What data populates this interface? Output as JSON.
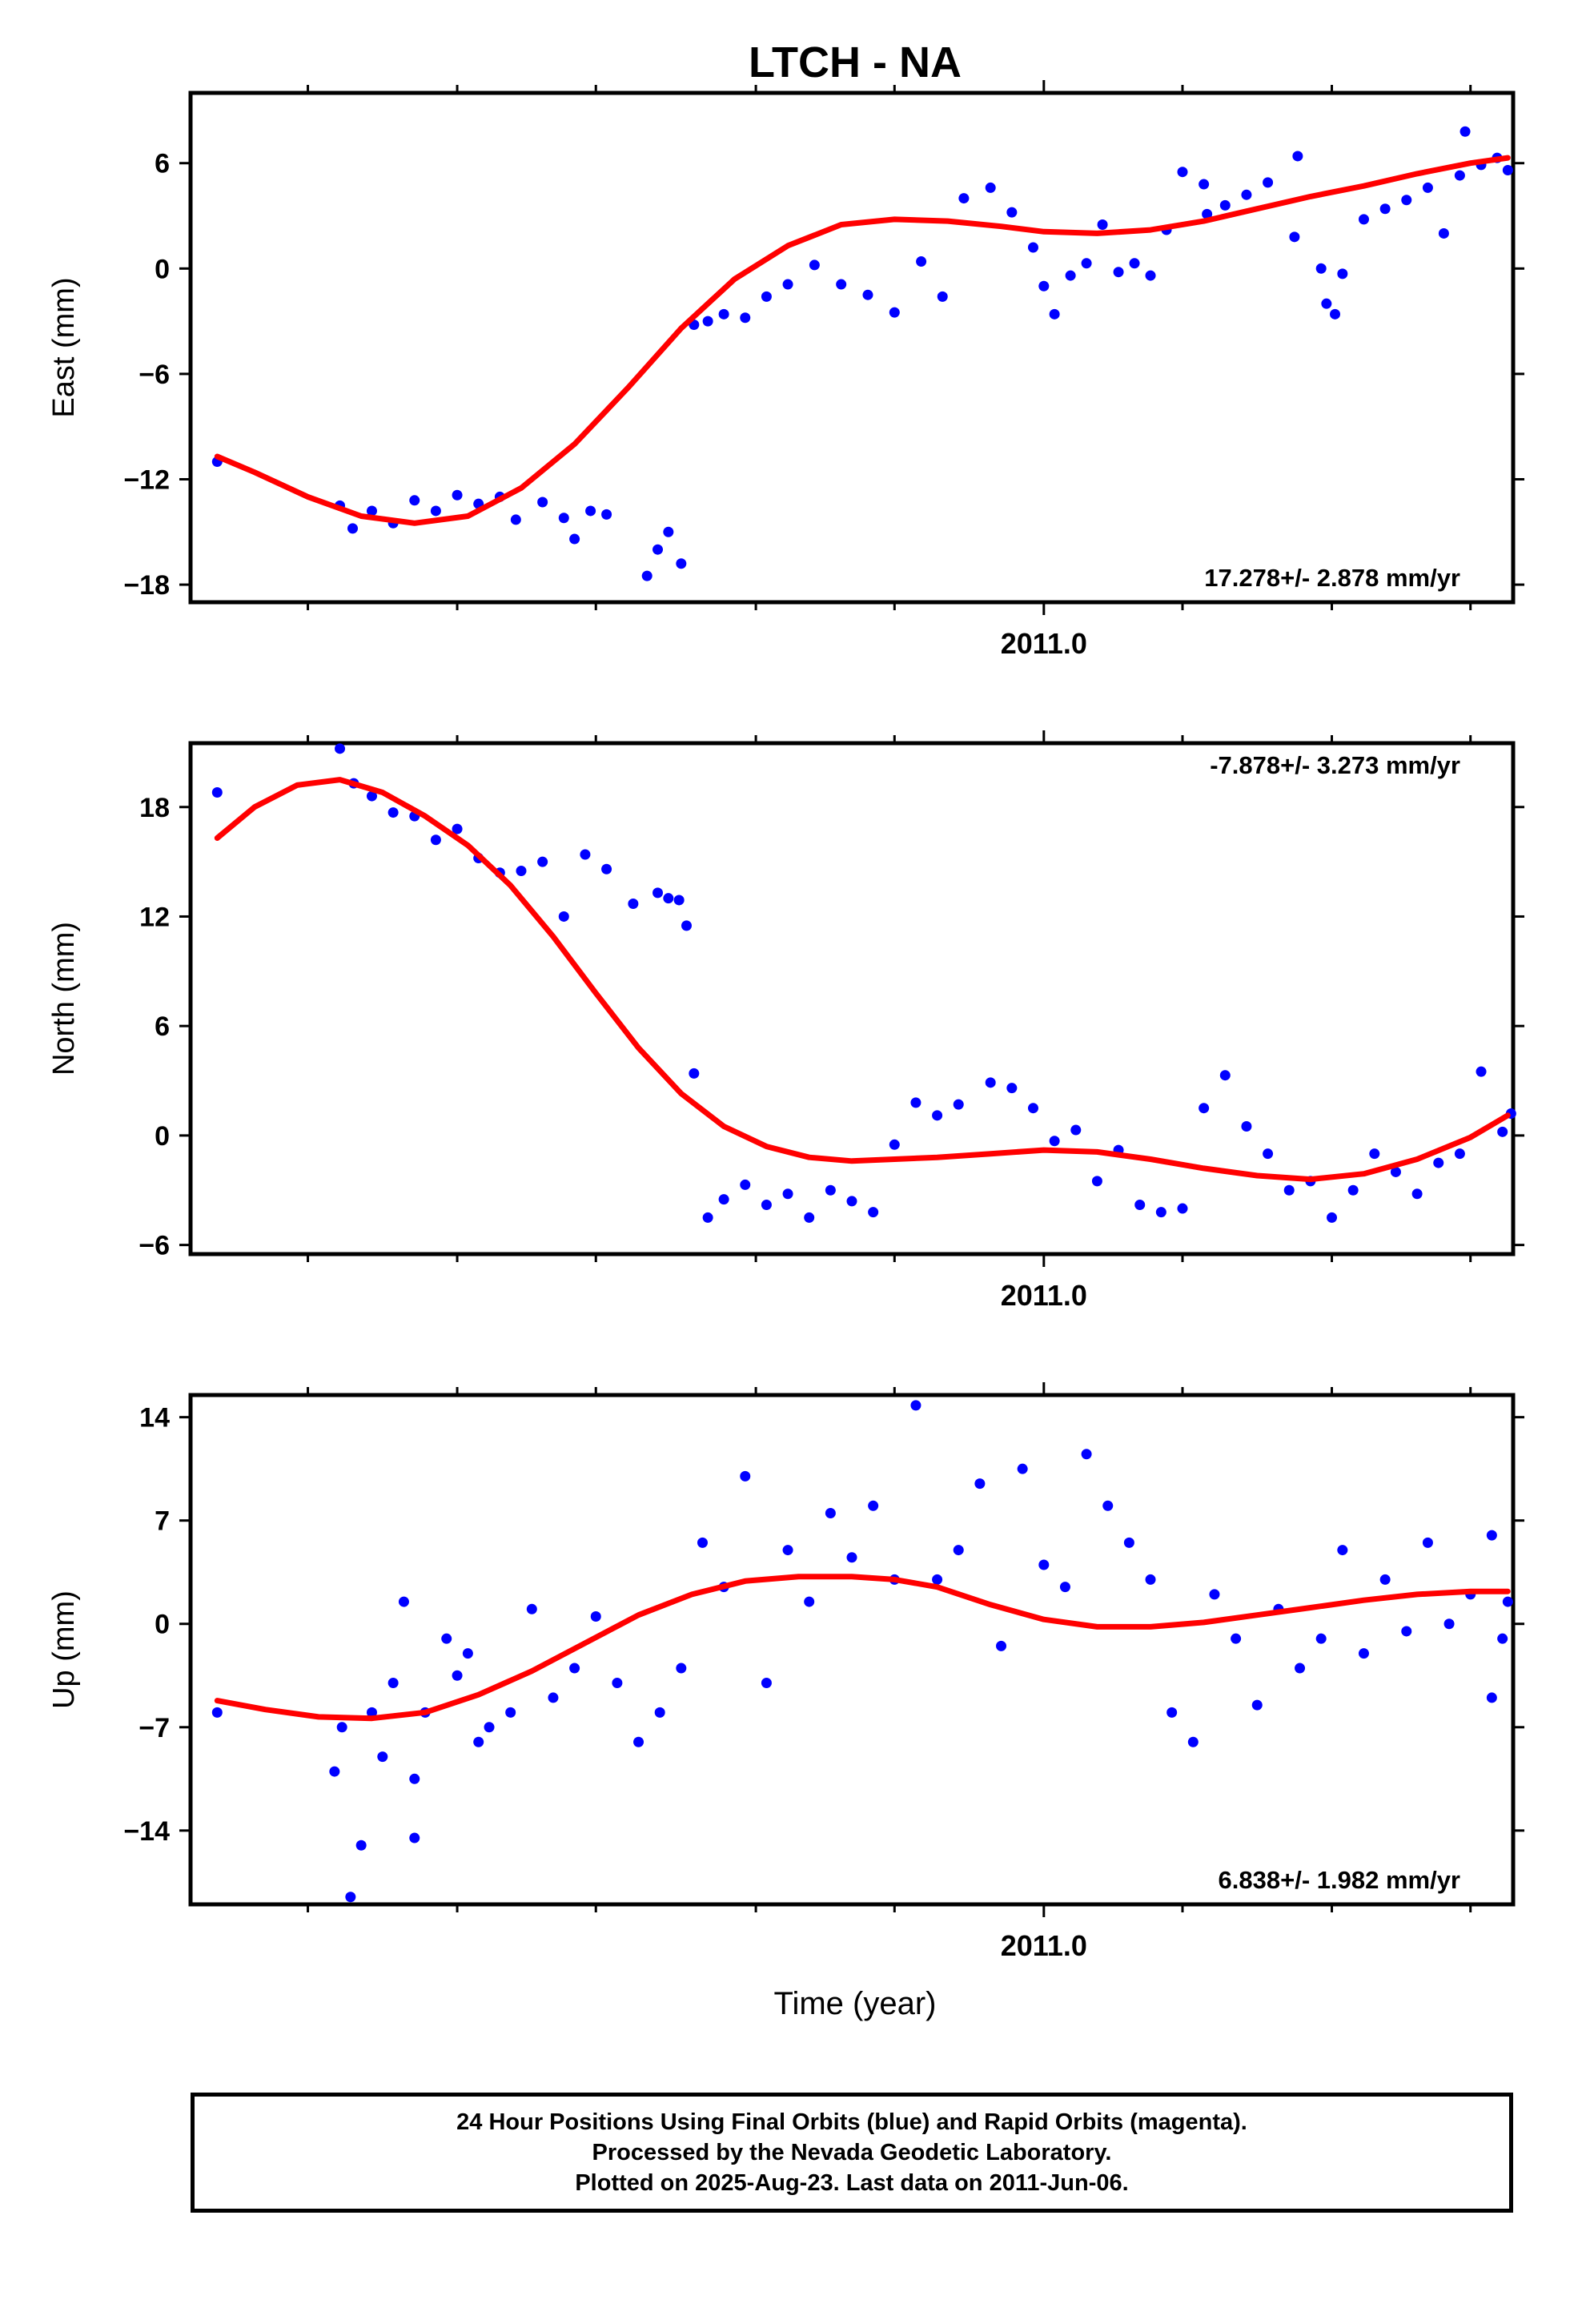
{
  "title": "LTCH - NA",
  "xlabel": "Time (year)",
  "footer": [
    "24 Hour Positions Using Final Orbits (blue) and Rapid Orbits (magenta).",
    "Processed by the Nevada Geodetic Laboratory.",
    "Plotted on 2025-Aug-23. Last data on 2011-Jun-06."
  ],
  "colors": {
    "points": "#0000ff",
    "model": "#ff0000",
    "frame": "#000000"
  },
  "chart_data": [
    {
      "type": "scatter",
      "ylabel": "East (mm)",
      "rate_text": "17.278+/- 2.878 mm/yr",
      "legend_position": "bottom-right",
      "xlim": [
        2010.2,
        2011.44
      ],
      "ylim": [
        -19,
        10
      ],
      "yticks": [
        -18,
        -12,
        -6,
        0,
        6
      ],
      "ytick_labels": [
        "−18",
        "−12",
        "−6",
        "0",
        "6"
      ],
      "xticks_major": [
        2011.0
      ],
      "xtick_labels": [
        "2011.0"
      ],
      "xticks_minor": [
        2010.31,
        2010.45,
        2010.58,
        2010.73,
        2010.86,
        2011.13,
        2011.27,
        2011.4
      ],
      "series": [
        {
          "role": "points",
          "x": [
            2010.225,
            2010.34,
            2010.352,
            2010.37,
            2010.39,
            2010.41,
            2010.43,
            2010.45,
            2010.47,
            2010.49,
            2010.505,
            2010.53,
            2010.55,
            2010.56,
            2010.575,
            2010.59,
            2010.628,
            2010.638,
            2010.648,
            2010.66,
            2010.672,
            2010.685,
            2010.7,
            2010.72,
            2010.74,
            2010.76,
            2010.785,
            2010.81,
            2010.835,
            2010.86,
            2010.885,
            2010.905,
            2010.925,
            2010.95,
            2010.97,
            2010.99,
            2011.0,
            2011.01,
            2011.025,
            2011.04,
            2011.055,
            2011.07,
            2011.085,
            2011.1,
            2011.115,
            2011.13,
            2011.15,
            2011.17,
            2011.19,
            2011.21,
            2011.235,
            2011.26,
            2011.28,
            2011.3,
            2011.32,
            2011.34,
            2011.36,
            2011.375,
            2011.39,
            2011.395,
            2011.41,
            2011.425,
            2011.435,
            2011.265,
            2011.273,
            2011.153,
            2011.238
          ],
          "y": [
            -11,
            -13.5,
            -14.8,
            -13.8,
            -14.5,
            -13.2,
            -13.8,
            -12.9,
            -13.4,
            -13.0,
            -14.3,
            -13.3,
            -14.2,
            -15.4,
            -13.8,
            -14.0,
            -17.5,
            -16.0,
            -15.0,
            -16.8,
            -3.2,
            -3.0,
            -2.6,
            -2.8,
            -1.6,
            -0.9,
            0.2,
            -0.9,
            -1.5,
            -2.5,
            0.4,
            -1.6,
            4.0,
            4.6,
            3.2,
            1.2,
            -1.0,
            -2.6,
            -0.4,
            0.3,
            2.5,
            -0.2,
            0.3,
            -0.4,
            2.2,
            5.5,
            4.8,
            3.6,
            4.2,
            4.9,
            1.8,
            0.0,
            -0.3,
            2.8,
            3.4,
            3.9,
            4.6,
            2.0,
            5.3,
            7.8,
            5.9,
            6.3,
            5.6,
            -2.0,
            -2.6,
            3.1,
            6.4
          ]
        },
        {
          "role": "model",
          "x": [
            2010.225,
            2010.26,
            2010.31,
            2010.36,
            2010.41,
            2010.46,
            2010.51,
            2010.56,
            2010.61,
            2010.66,
            2010.71,
            2010.76,
            2010.81,
            2010.86,
            2010.91,
            2010.96,
            2011.0,
            2011.05,
            2011.1,
            2011.15,
            2011.2,
            2011.25,
            2011.3,
            2011.35,
            2011.4,
            2011.435
          ],
          "y": [
            -10.7,
            -11.6,
            -13.0,
            -14.1,
            -14.5,
            -14.1,
            -12.5,
            -10.0,
            -6.8,
            -3.4,
            -0.6,
            1.3,
            2.5,
            2.8,
            2.7,
            2.4,
            2.1,
            2.0,
            2.2,
            2.7,
            3.4,
            4.1,
            4.7,
            5.4,
            6.0,
            6.3
          ]
        }
      ]
    },
    {
      "type": "scatter",
      "ylabel": "North (mm)",
      "rate_text": "-7.878+/- 3.273 mm/yr",
      "legend_position": "top-right",
      "xlim": [
        2010.2,
        2011.44
      ],
      "ylim": [
        -6.5,
        21.5
      ],
      "yticks": [
        -6,
        0,
        6,
        12,
        18
      ],
      "ytick_labels": [
        "−6",
        "0",
        "6",
        "12",
        "18"
      ],
      "xticks_major": [
        2011.0
      ],
      "xtick_labels": [
        "2011.0"
      ],
      "xticks_minor": [
        2010.31,
        2010.45,
        2010.58,
        2010.73,
        2010.86,
        2011.13,
        2011.27,
        2011.4
      ],
      "series": [
        {
          "role": "points",
          "x": [
            2010.225,
            2010.34,
            2010.353,
            2010.37,
            2010.39,
            2010.41,
            2010.43,
            2010.45,
            2010.47,
            2010.49,
            2010.51,
            2010.53,
            2010.55,
            2010.57,
            2010.59,
            2010.615,
            2010.638,
            2010.648,
            2010.658,
            2010.665,
            2010.672,
            2010.685,
            2010.7,
            2010.72,
            2010.74,
            2010.76,
            2010.78,
            2010.8,
            2010.82,
            2010.84,
            2010.86,
            2010.88,
            2010.9,
            2010.92,
            2010.95,
            2010.97,
            2010.99,
            2011.01,
            2011.03,
            2011.05,
            2011.07,
            2011.09,
            2011.11,
            2011.13,
            2011.15,
            2011.17,
            2011.19,
            2011.21,
            2011.23,
            2011.25,
            2011.27,
            2011.29,
            2011.31,
            2011.33,
            2011.35,
            2011.37,
            2011.39,
            2011.41,
            2011.43,
            2011.438
          ],
          "y": [
            18.8,
            21.2,
            19.3,
            18.6,
            17.7,
            17.5,
            16.2,
            16.8,
            15.2,
            14.4,
            14.5,
            15.0,
            12.0,
            15.4,
            14.6,
            12.7,
            13.3,
            13.0,
            12.9,
            11.5,
            3.4,
            -4.5,
            -3.5,
            -2.7,
            -3.8,
            -3.2,
            -4.5,
            -3.0,
            -3.6,
            -4.2,
            -0.5,
            1.8,
            1.1,
            1.7,
            2.9,
            2.6,
            1.5,
            -0.3,
            0.3,
            -2.5,
            -0.8,
            -3.8,
            -4.2,
            -4.0,
            1.5,
            3.3,
            0.5,
            -1.0,
            -3.0,
            -2.5,
            -4.5,
            -3.0,
            -1.0,
            -2.0,
            -3.2,
            -1.5,
            -1.0,
            3.5,
            0.2,
            1.2
          ]
        },
        {
          "role": "model",
          "x": [
            2010.225,
            2010.26,
            2010.3,
            2010.34,
            2010.38,
            2010.42,
            2010.46,
            2010.5,
            2010.54,
            2010.58,
            2010.62,
            2010.66,
            2010.7,
            2010.74,
            2010.78,
            2010.82,
            2010.86,
            2010.9,
            2010.95,
            2011.0,
            2011.05,
            2011.1,
            2011.15,
            2011.2,
            2011.25,
            2011.3,
            2011.35,
            2011.4,
            2011.435
          ],
          "y": [
            16.3,
            18.0,
            19.2,
            19.5,
            18.8,
            17.5,
            15.9,
            13.7,
            10.9,
            7.8,
            4.8,
            2.3,
            0.5,
            -0.6,
            -1.2,
            -1.4,
            -1.3,
            -1.2,
            -1.0,
            -0.8,
            -0.9,
            -1.3,
            -1.8,
            -2.2,
            -2.4,
            -2.1,
            -1.3,
            -0.1,
            1.1
          ]
        }
      ]
    },
    {
      "type": "scatter",
      "ylabel": "Up (mm)",
      "rate_text": "6.838+/- 1.982 mm/yr",
      "legend_position": "bottom-right",
      "xlim": [
        2010.2,
        2011.44
      ],
      "ylim": [
        -19,
        15.5
      ],
      "yticks": [
        -14,
        -7,
        0,
        7,
        14
      ],
      "ytick_labels": [
        "−14",
        "−7",
        "0",
        "7",
        "14"
      ],
      "xticks_major": [
        2011.0
      ],
      "xtick_labels": [
        "2011.0"
      ],
      "xticks_minor": [
        2010.31,
        2010.45,
        2010.58,
        2010.73,
        2010.86,
        2011.13,
        2011.27,
        2011.4
      ],
      "series": [
        {
          "role": "points",
          "x": [
            2010.225,
            2010.335,
            2010.342,
            2010.35,
            2010.36,
            2010.37,
            2010.38,
            2010.39,
            2010.4,
            2010.41,
            2010.42,
            2010.44,
            2010.45,
            2010.46,
            2010.48,
            2010.5,
            2010.52,
            2010.54,
            2010.56,
            2010.58,
            2010.6,
            2010.62,
            2010.64,
            2010.66,
            2010.68,
            2010.7,
            2010.72,
            2010.74,
            2010.76,
            2010.78,
            2010.8,
            2010.82,
            2010.84,
            2010.86,
            2010.88,
            2010.9,
            2010.92,
            2010.94,
            2010.96,
            2010.98,
            2011.0,
            2011.02,
            2011.04,
            2011.06,
            2011.08,
            2011.1,
            2011.12,
            2011.14,
            2011.16,
            2011.18,
            2011.2,
            2011.22,
            2011.24,
            2011.26,
            2011.28,
            2011.3,
            2011.32,
            2011.34,
            2011.36,
            2011.38,
            2011.4,
            2011.42,
            2011.435,
            2011.43,
            2011.42,
            2010.41,
            2010.47
          ],
          "y": [
            -6,
            -10,
            -7,
            -18.5,
            -15,
            -6,
            -9,
            -4,
            1.5,
            -10.5,
            -6,
            -1,
            -3.5,
            -2,
            -7,
            -6,
            1,
            -5,
            -3,
            0.5,
            -4,
            -8,
            -6,
            -3,
            5.5,
            2.5,
            10,
            -4,
            5,
            1.5,
            7.5,
            4.5,
            8,
            3,
            14.8,
            3,
            5,
            9.5,
            -1.5,
            10.5,
            4,
            2.5,
            11.5,
            8,
            5.5,
            3,
            -6,
            -8,
            2,
            -1,
            -5.5,
            1,
            -3,
            -1,
            5,
            -2,
            3,
            -0.5,
            5.5,
            0,
            2,
            6,
            1.5,
            -1,
            -5,
            -14.5,
            -8
          ]
        },
        {
          "role": "model",
          "x": [
            2010.225,
            2010.27,
            2010.32,
            2010.37,
            2010.42,
            2010.47,
            2010.52,
            2010.57,
            2010.62,
            2010.67,
            2010.72,
            2010.77,
            2010.82,
            2010.86,
            2010.9,
            2010.95,
            2011.0,
            2011.05,
            2011.1,
            2011.15,
            2011.2,
            2011.25,
            2011.3,
            2011.35,
            2011.4,
            2011.435
          ],
          "y": [
            -5.2,
            -5.8,
            -6.3,
            -6.4,
            -6.0,
            -4.8,
            -3.2,
            -1.3,
            0.6,
            2.0,
            2.9,
            3.2,
            3.2,
            3.0,
            2.5,
            1.3,
            0.3,
            -0.2,
            -0.2,
            0.1,
            0.6,
            1.1,
            1.6,
            2.0,
            2.2,
            2.2
          ]
        }
      ]
    }
  ]
}
